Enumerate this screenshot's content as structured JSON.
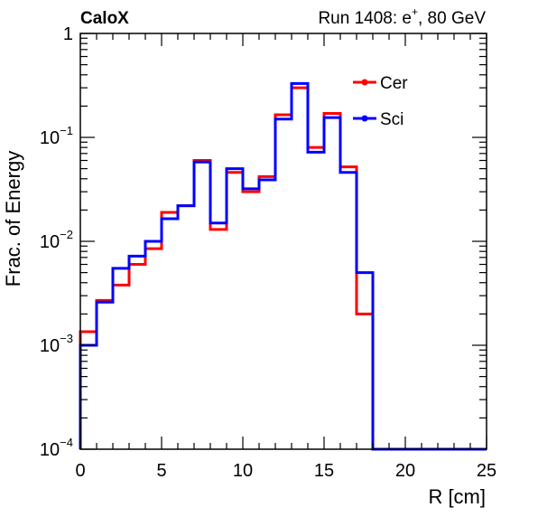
{
  "chart_data": {
    "type": "line",
    "title_left": "CaloX",
    "title_right": "Run 1408: e",
    "title_right_sup": "+",
    "title_right_tail": ", 80 GeV",
    "xlabel": "R [cm]",
    "ylabel": "Frac. of Energy",
    "xlim": [
      0,
      25
    ],
    "ylim": [
      0.0001,
      1
    ],
    "yscale": "log",
    "grid": false,
    "legend_position": "top-right",
    "x_ticks": [
      "0",
      "5",
      "10",
      "15",
      "20",
      "25"
    ],
    "y_ticks": [
      {
        "base": "1",
        "exp": ""
      },
      {
        "base": "10",
        "exp": "−1"
      },
      {
        "base": "10",
        "exp": "−2"
      },
      {
        "base": "10",
        "exp": "−3"
      },
      {
        "base": "10",
        "exp": "−4"
      }
    ],
    "bin_edges": [
      0,
      1,
      2,
      3,
      4,
      5,
      6,
      7,
      8,
      9,
      10,
      11,
      12,
      13,
      14,
      15,
      16,
      17,
      18,
      19,
      20,
      21,
      22,
      23,
      24,
      25
    ],
    "series": [
      {
        "name": "Cer",
        "color": "#ff0000",
        "values": [
          0.00135,
          0.0027,
          0.0038,
          0.006,
          0.0085,
          0.019,
          0.022,
          0.06,
          0.013,
          0.046,
          0.03,
          0.042,
          0.165,
          0.3,
          0.08,
          0.17,
          0.052,
          0.002,
          0.0001,
          0.0001,
          0.0001,
          0.0001,
          0.0001,
          0.0001,
          0.0001
        ]
      },
      {
        "name": "Sci",
        "color": "#0000ff",
        "values": [
          0.001,
          0.0026,
          0.0055,
          0.0072,
          0.01,
          0.0165,
          0.022,
          0.058,
          0.015,
          0.05,
          0.032,
          0.039,
          0.15,
          0.33,
          0.072,
          0.155,
          0.046,
          0.005,
          0.0001,
          0.0001,
          0.0001,
          0.0001,
          0.0001,
          0.0001,
          0.0001
        ]
      }
    ]
  }
}
